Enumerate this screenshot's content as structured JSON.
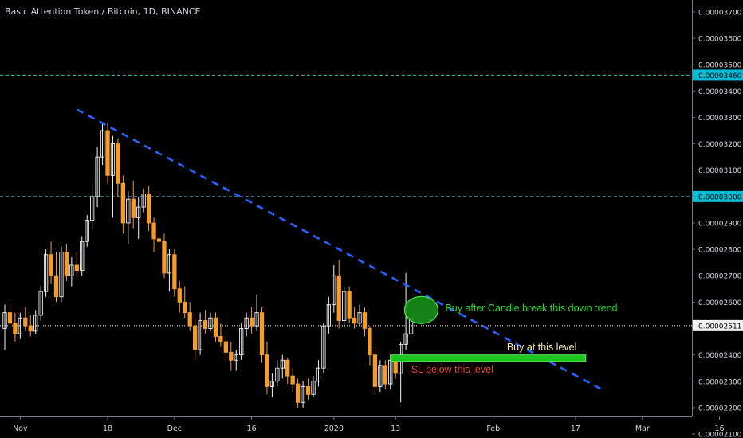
{
  "header": {
    "title": "Basic Attention Token / Bitcoin, 1D, BINANCE"
  },
  "colors": {
    "background": "#000000",
    "up_candle": "#f2f2f2",
    "down_candle": "#f39c2b",
    "trendline": "#2962ff",
    "guide_line": "#3fb7d6",
    "label_bg": "#00bcd4",
    "zone_fill": "#1ec41e",
    "ellipse_fill": "#188f18",
    "axis_text": "#d1d4dc",
    "current_label_bg": "#f2f2f2"
  },
  "annotations": {
    "break_text": "Buy after Candle break this down trend",
    "buy_text": "Buy at this level",
    "sl_text": "SL below this level"
  },
  "chart_data": {
    "type": "candlestick",
    "title": "Basic Attention Token / Bitcoin, 1D, BINANCE",
    "ylim": [
      2.085e-05,
      3.745e-05
    ],
    "y_ticks": [
      "0.00003700",
      "0.00003600",
      "0.00003500",
      "0.00003400",
      "0.00003300",
      "0.00003200",
      "0.00003100",
      "0.00003000",
      "0.00002900",
      "0.00002800",
      "0.00002700",
      "0.00002600",
      "0.00002400",
      "0.00002300",
      "0.00002200",
      "0.00002100"
    ],
    "y_tick_values": [
      3700,
      3600,
      3500,
      3400,
      3300,
      3200,
      3100,
      3000,
      2900,
      2800,
      2700,
      2600,
      2400,
      2300,
      2200,
      2100
    ],
    "x_ticks": [
      {
        "label": "Nov",
        "date": "2019-11-01"
      },
      {
        "label": "18",
        "date": "2019-11-18"
      },
      {
        "label": "Dec",
        "date": "2019-12-01"
      },
      {
        "label": "16",
        "date": "2019-12-16"
      },
      {
        "label": "2020",
        "date": "2020-01-01"
      },
      {
        "label": "13",
        "date": "2020-01-13"
      },
      {
        "label": "Feb",
        "date": "2020-02-01"
      },
      {
        "label": "17",
        "date": "2020-02-17"
      },
      {
        "label": "Mar",
        "date": "2020-03-01"
      },
      {
        "label": "16",
        "date": "2020-03-16"
      }
    ],
    "price_unit_scale": "values in units of 0.00000001",
    "candles": [
      {
        "date": "2019-10-29",
        "o": 2500,
        "h": 2590,
        "l": 2420,
        "c": 2560
      },
      {
        "date": "2019-10-30",
        "o": 2560,
        "h": 2600,
        "l": 2490,
        "c": 2520
      },
      {
        "date": "2019-10-31",
        "o": 2520,
        "h": 2560,
        "l": 2450,
        "c": 2480
      },
      {
        "date": "2019-11-01",
        "o": 2480,
        "h": 2560,
        "l": 2460,
        "c": 2540
      },
      {
        "date": "2019-11-02",
        "o": 2540,
        "h": 2580,
        "l": 2490,
        "c": 2510
      },
      {
        "date": "2019-11-03",
        "o": 2510,
        "h": 2550,
        "l": 2470,
        "c": 2490
      },
      {
        "date": "2019-11-04",
        "o": 2490,
        "h": 2570,
        "l": 2480,
        "c": 2550
      },
      {
        "date": "2019-11-05",
        "o": 2550,
        "h": 2660,
        "l": 2530,
        "c": 2640
      },
      {
        "date": "2019-11-06",
        "o": 2640,
        "h": 2800,
        "l": 2620,
        "c": 2780
      },
      {
        "date": "2019-11-07",
        "o": 2780,
        "h": 2830,
        "l": 2670,
        "c": 2700
      },
      {
        "date": "2019-11-08",
        "o": 2700,
        "h": 2790,
        "l": 2600,
        "c": 2620
      },
      {
        "date": "2019-11-09",
        "o": 2620,
        "h": 2810,
        "l": 2600,
        "c": 2790
      },
      {
        "date": "2019-11-10",
        "o": 2790,
        "h": 2820,
        "l": 2680,
        "c": 2700
      },
      {
        "date": "2019-11-11",
        "o": 2700,
        "h": 2770,
        "l": 2660,
        "c": 2740
      },
      {
        "date": "2019-11-12",
        "o": 2740,
        "h": 2790,
        "l": 2700,
        "c": 2720
      },
      {
        "date": "2019-11-13",
        "o": 2720,
        "h": 2850,
        "l": 2700,
        "c": 2830
      },
      {
        "date": "2019-11-14",
        "o": 2830,
        "h": 2930,
        "l": 2810,
        "c": 2910
      },
      {
        "date": "2019-11-15",
        "o": 2910,
        "h": 3050,
        "l": 2880,
        "c": 3000
      },
      {
        "date": "2019-11-16",
        "o": 3000,
        "h": 3190,
        "l": 2960,
        "c": 3150
      },
      {
        "date": "2019-11-17",
        "o": 3150,
        "h": 3280,
        "l": 3120,
        "c": 3250
      },
      {
        "date": "2019-11-18",
        "o": 3250,
        "h": 3280,
        "l": 3050,
        "c": 3080
      },
      {
        "date": "2019-11-19",
        "o": 3080,
        "h": 3230,
        "l": 2920,
        "c": 3200
      },
      {
        "date": "2019-11-20",
        "o": 3200,
        "h": 3220,
        "l": 3000,
        "c": 3050
      },
      {
        "date": "2019-11-21",
        "o": 3050,
        "h": 3080,
        "l": 2860,
        "c": 2900
      },
      {
        "date": "2019-11-22",
        "o": 2900,
        "h": 3020,
        "l": 2820,
        "c": 2990
      },
      {
        "date": "2019-11-23",
        "o": 2990,
        "h": 3060,
        "l": 2880,
        "c": 2920
      },
      {
        "date": "2019-11-24",
        "o": 2920,
        "h": 3000,
        "l": 2840,
        "c": 2960
      },
      {
        "date": "2019-11-25",
        "o": 2960,
        "h": 3030,
        "l": 2940,
        "c": 3010
      },
      {
        "date": "2019-11-26",
        "o": 3010,
        "h": 3040,
        "l": 2870,
        "c": 2900
      },
      {
        "date": "2019-11-27",
        "o": 2900,
        "h": 2920,
        "l": 2790,
        "c": 2840
      },
      {
        "date": "2019-11-28",
        "o": 2840,
        "h": 2870,
        "l": 2790,
        "c": 2830
      },
      {
        "date": "2019-11-29",
        "o": 2830,
        "h": 2860,
        "l": 2690,
        "c": 2710
      },
      {
        "date": "2019-11-30",
        "o": 2710,
        "h": 2800,
        "l": 2640,
        "c": 2780
      },
      {
        "date": "2019-12-01",
        "o": 2780,
        "h": 2800,
        "l": 2620,
        "c": 2650
      },
      {
        "date": "2019-12-02",
        "o": 2650,
        "h": 2680,
        "l": 2560,
        "c": 2600
      },
      {
        "date": "2019-12-03",
        "o": 2600,
        "h": 2660,
        "l": 2540,
        "c": 2560
      },
      {
        "date": "2019-12-04",
        "o": 2560,
        "h": 2600,
        "l": 2490,
        "c": 2510
      },
      {
        "date": "2019-12-05",
        "o": 2510,
        "h": 2540,
        "l": 2380,
        "c": 2420
      },
      {
        "date": "2019-12-06",
        "o": 2420,
        "h": 2560,
        "l": 2400,
        "c": 2530
      },
      {
        "date": "2019-12-07",
        "o": 2530,
        "h": 2570,
        "l": 2480,
        "c": 2500
      },
      {
        "date": "2019-12-08",
        "o": 2500,
        "h": 2560,
        "l": 2490,
        "c": 2540
      },
      {
        "date": "2019-12-09",
        "o": 2540,
        "h": 2560,
        "l": 2450,
        "c": 2470
      },
      {
        "date": "2019-12-10",
        "o": 2470,
        "h": 2520,
        "l": 2430,
        "c": 2450
      },
      {
        "date": "2019-12-11",
        "o": 2450,
        "h": 2470,
        "l": 2380,
        "c": 2410
      },
      {
        "date": "2019-12-12",
        "o": 2410,
        "h": 2450,
        "l": 2340,
        "c": 2380
      },
      {
        "date": "2019-12-13",
        "o": 2380,
        "h": 2420,
        "l": 2340,
        "c": 2400
      },
      {
        "date": "2019-12-14",
        "o": 2400,
        "h": 2520,
        "l": 2380,
        "c": 2500
      },
      {
        "date": "2019-12-15",
        "o": 2500,
        "h": 2560,
        "l": 2470,
        "c": 2540
      },
      {
        "date": "2019-12-16",
        "o": 2540,
        "h": 2580,
        "l": 2480,
        "c": 2510
      },
      {
        "date": "2019-12-17",
        "o": 2510,
        "h": 2630,
        "l": 2490,
        "c": 2560
      },
      {
        "date": "2019-12-18",
        "o": 2560,
        "h": 2580,
        "l": 2370,
        "c": 2400
      },
      {
        "date": "2019-12-19",
        "o": 2400,
        "h": 2450,
        "l": 2250,
        "c": 2280
      },
      {
        "date": "2019-12-20",
        "o": 2280,
        "h": 2330,
        "l": 2240,
        "c": 2300
      },
      {
        "date": "2019-12-21",
        "o": 2300,
        "h": 2380,
        "l": 2280,
        "c": 2350
      },
      {
        "date": "2019-12-22",
        "o": 2350,
        "h": 2400,
        "l": 2310,
        "c": 2380
      },
      {
        "date": "2019-12-23",
        "o": 2380,
        "h": 2390,
        "l": 2290,
        "c": 2320
      },
      {
        "date": "2019-12-24",
        "o": 2320,
        "h": 2350,
        "l": 2260,
        "c": 2290
      },
      {
        "date": "2019-12-25",
        "o": 2290,
        "h": 2310,
        "l": 2200,
        "c": 2220
      },
      {
        "date": "2019-12-26",
        "o": 2220,
        "h": 2300,
        "l": 2200,
        "c": 2280
      },
      {
        "date": "2019-12-27",
        "o": 2280,
        "h": 2310,
        "l": 2230,
        "c": 2250
      },
      {
        "date": "2019-12-28",
        "o": 2250,
        "h": 2320,
        "l": 2240,
        "c": 2300
      },
      {
        "date": "2019-12-29",
        "o": 2300,
        "h": 2380,
        "l": 2280,
        "c": 2350
      },
      {
        "date": "2019-12-30",
        "o": 2350,
        "h": 2520,
        "l": 2330,
        "c": 2510
      },
      {
        "date": "2019-12-31",
        "o": 2510,
        "h": 2620,
        "l": 2480,
        "c": 2590
      },
      {
        "date": "2020-01-01",
        "o": 2590,
        "h": 2740,
        "l": 2560,
        "c": 2700
      },
      {
        "date": "2020-01-02",
        "o": 2700,
        "h": 2760,
        "l": 2500,
        "c": 2530
      },
      {
        "date": "2020-01-03",
        "o": 2530,
        "h": 2660,
        "l": 2500,
        "c": 2640
      },
      {
        "date": "2020-01-04",
        "o": 2640,
        "h": 2660,
        "l": 2520,
        "c": 2540
      },
      {
        "date": "2020-01-05",
        "o": 2540,
        "h": 2580,
        "l": 2500,
        "c": 2520
      },
      {
        "date": "2020-01-06",
        "o": 2520,
        "h": 2590,
        "l": 2510,
        "c": 2560
      },
      {
        "date": "2020-01-07",
        "o": 2560,
        "h": 2580,
        "l": 2470,
        "c": 2500
      },
      {
        "date": "2020-01-08",
        "o": 2500,
        "h": 2510,
        "l": 2360,
        "c": 2400
      },
      {
        "date": "2020-01-09",
        "o": 2400,
        "h": 2420,
        "l": 2250,
        "c": 2280
      },
      {
        "date": "2020-01-10",
        "o": 2280,
        "h": 2380,
        "l": 2260,
        "c": 2360
      },
      {
        "date": "2020-01-11",
        "o": 2360,
        "h": 2380,
        "l": 2270,
        "c": 2290
      },
      {
        "date": "2020-01-12",
        "o": 2290,
        "h": 2400,
        "l": 2270,
        "c": 2380
      },
      {
        "date": "2020-01-13",
        "o": 2380,
        "h": 2390,
        "l": 2310,
        "c": 2330
      },
      {
        "date": "2020-01-14",
        "o": 2330,
        "h": 2450,
        "l": 2220,
        "c": 2440
      },
      {
        "date": "2020-01-15",
        "o": 2440,
        "h": 2710,
        "l": 2420,
        "c": 2480
      },
      {
        "date": "2020-01-16",
        "o": 2480,
        "h": 2560,
        "l": 2460,
        "c": 2540
      }
    ],
    "current_price": {
      "value": "0.00002511",
      "y": 2511
    },
    "horizontal_levels": [
      {
        "label": "0.00003460",
        "y": 3460
      },
      {
        "label": "0.00003000",
        "y": 3000
      }
    ],
    "trendline": {
      "start": {
        "date": "2019-11-12",
        "y": 3330
      },
      "end": {
        "date": "2020-02-22",
        "y": 2270
      }
    },
    "buy_zone": {
      "date_start": "2020-01-12",
      "date_end": "2020-02-19",
      "y_bottom": 2375,
      "y_top": 2400
    },
    "break_marker": {
      "date": "2020-01-18",
      "y": 2570
    }
  }
}
